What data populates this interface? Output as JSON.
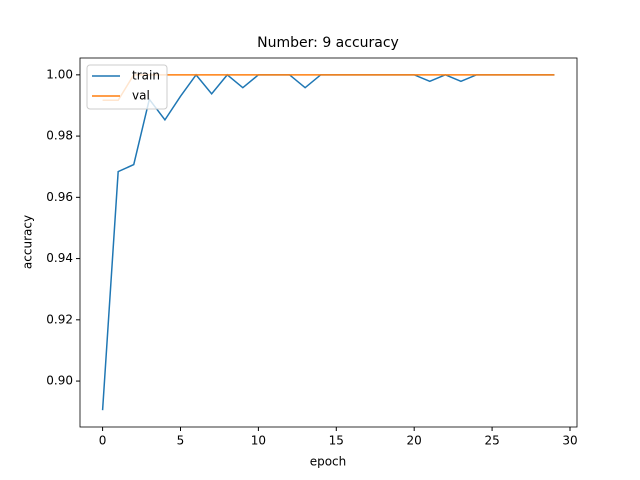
{
  "chart_data": {
    "type": "line",
    "title": "Number: 9 accuracy",
    "x_label": "epoch",
    "y_label": "accuracy",
    "x": [
      0,
      1,
      2,
      3,
      4,
      5,
      6,
      7,
      8,
      9,
      10,
      11,
      12,
      13,
      14,
      15,
      16,
      17,
      18,
      19,
      20,
      21,
      22,
      23,
      24,
      25,
      26,
      27,
      28,
      29
    ],
    "series": [
      {
        "name": "train",
        "color": "#1f77b4",
        "values": [
          0.8905,
          0.9684,
          0.9707,
          0.992,
          0.9853,
          0.993,
          1.0,
          0.9938,
          1.0,
          0.9958,
          1.0,
          1.0,
          1.0,
          0.9958,
          1.0,
          1.0,
          1.0,
          1.0,
          1.0,
          1.0,
          1.0,
          0.9979,
          1.0,
          0.9979,
          1.0,
          1.0,
          1.0,
          1.0,
          1.0,
          1.0
        ]
      },
      {
        "name": "val",
        "color": "#ff7f0e",
        "values": [
          0.9917,
          0.9917,
          1.0,
          1.0,
          1.0,
          1.0,
          1.0,
          1.0,
          1.0,
          1.0,
          1.0,
          1.0,
          1.0,
          1.0,
          1.0,
          1.0,
          1.0,
          1.0,
          1.0,
          1.0,
          1.0,
          1.0,
          1.0,
          1.0,
          1.0,
          1.0,
          1.0,
          1.0,
          1.0,
          1.0
        ]
      }
    ],
    "xlim": [
      -1.45,
      30.45
    ],
    "xticks": [
      0,
      5,
      10,
      15,
      20,
      25,
      30
    ],
    "ylim": [
      0.885,
      1.0055
    ],
    "yticks": [
      {
        "value": 0.9,
        "label": "0.90"
      },
      {
        "value": 0.92,
        "label": "0.92"
      },
      {
        "value": 0.94,
        "label": "0.94"
      },
      {
        "value": 0.96,
        "label": "0.96"
      },
      {
        "value": 0.98,
        "label": "0.98"
      },
      {
        "value": 1.0,
        "label": "1.00"
      }
    ],
    "legend": "upper left"
  }
}
